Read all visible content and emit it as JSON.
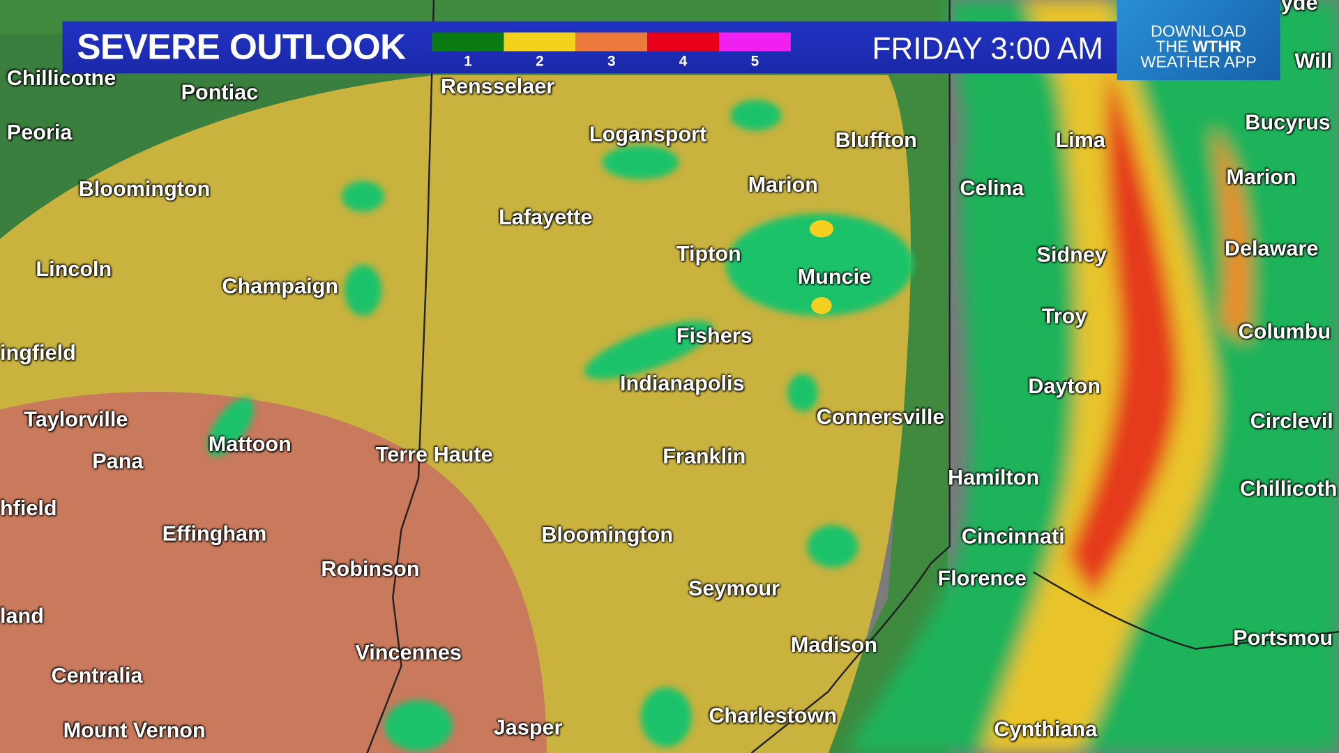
{
  "header": {
    "title": "SEVERE OUTLOOK",
    "time": "FRIDAY 3:00 AM",
    "legend": [
      {
        "level": "1",
        "color": "#0a7a12"
      },
      {
        "level": "2",
        "color": "#f2d21a"
      },
      {
        "level": "3",
        "color": "#ec7a3a"
      },
      {
        "level": "4",
        "color": "#e8001a"
      },
      {
        "level": "5",
        "color": "#f020f0"
      }
    ]
  },
  "promo": {
    "line1": "DOWNLOAD",
    "line2_prefix": "THE ",
    "line2_brand": "WTHR",
    "line3": "WEATHER APP"
  },
  "map": {
    "risk_colors": {
      "marginal": "#3f8a3f",
      "slight": "#c9b23e",
      "enhanced": "#c9795c"
    },
    "cities": [
      "Chillicothe",
      "Pontiac",
      "Rensselaer",
      "Peoria",
      "Logansport",
      "Bluffton",
      "Lima",
      "Bucyrus",
      "Bloomington",
      "Marion",
      "Celina",
      "Marion",
      "Lafayette",
      "Tipton",
      "Sidney",
      "Delaware",
      "Lincoln",
      "Champaign",
      "Muncie",
      "Troy",
      "Columbu",
      "ingfield",
      "Fishers",
      "Indianapolis",
      "Dayton",
      "Connersville",
      "Taylorville",
      "Circlevil",
      "Mattoon",
      "Pana",
      "Terre Haute",
      "Franklin",
      "Hamilton",
      "Chillicoth",
      "hfield",
      "Effingham",
      "Bloomington",
      "Cincinnati",
      "Robinson",
      "Seymour",
      "Florence",
      "land",
      "Madison",
      "Portsmou",
      "Vincennes",
      "Centralia",
      "Charlestown",
      "Mount Vernon",
      "Jasper",
      "Cynthiana",
      "yde",
      "Will"
    ]
  }
}
